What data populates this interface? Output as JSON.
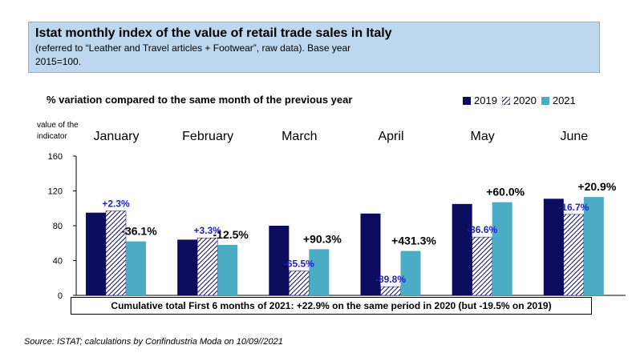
{
  "header": {
    "title": "Istat monthly index of the value of retail trade sales in Italy",
    "subtitle": "(referred to “Leather and Travel articles + Footwear”, raw data). Base year 2015=100."
  },
  "chart_subtitle": "% variation compared to the same month of the previous year",
  "ylabel": "value of the indicator",
  "note": "Cumulative total First 6 months of 2021: +22.9% on the same period in 2020 (but -19.5% on 2019)",
  "source": "Source: ISTAT; calculations by Confindustria Moda on 10/09//2021",
  "chart_data": {
    "type": "bar",
    "categories": [
      "January",
      "February",
      "March",
      "April",
      "May",
      "June"
    ],
    "series": [
      {
        "name": "2019",
        "color": "#0c0c5e",
        "pattern": "solid",
        "values": [
          95,
          64,
          80,
          94,
          105,
          111
        ]
      },
      {
        "name": "2020",
        "color": "#ffffff",
        "pattern": "hatched",
        "values": [
          97,
          66,
          28,
          10,
          67,
          93
        ]
      },
      {
        "name": "2021",
        "color": "#4bacc6",
        "pattern": "solid",
        "values": [
          62,
          58,
          53,
          51,
          107,
          113
        ]
      }
    ],
    "annotations_2020_vs_2019": [
      "+2.3%",
      "+3.3%",
      "-65.5%",
      "-89.8%",
      "-36.6%",
      "-16.7%"
    ],
    "annotations_2021_vs_2020": [
      "-36.1%",
      "-12.5%",
      "+90.3%",
      "+431.3%",
      "+60.0%",
      "+20.9%"
    ],
    "annotation_colors": {
      "2020": "#1f1fbf",
      "2021": "#000000"
    },
    "yticks": [
      0,
      40,
      80,
      120,
      160
    ],
    "ylim": [
      0,
      160
    ],
    "grid": false,
    "legend_position": "top-right"
  }
}
